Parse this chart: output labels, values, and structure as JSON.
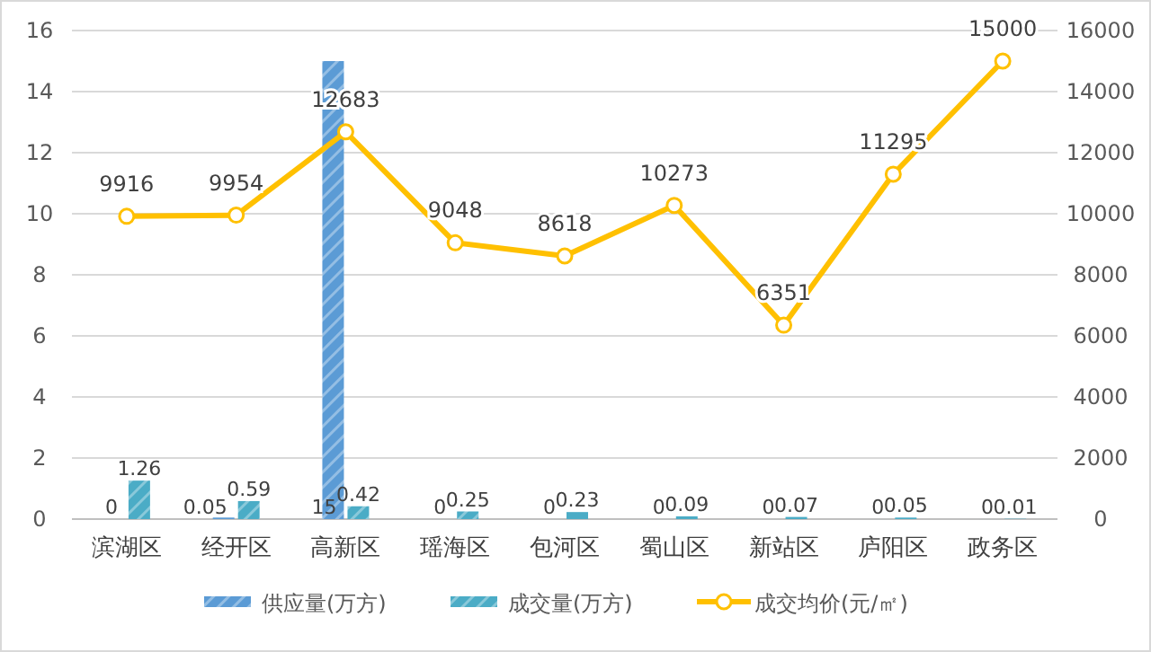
{
  "chart_data": {
    "type": "bar",
    "categories": [
      "滨湖区",
      "经开区",
      "高新区",
      "瑶海区",
      "包河区",
      "蜀山区",
      "新站区",
      "庐阳区",
      "政务区"
    ],
    "series": [
      {
        "name": "供应量(万方)",
        "color": "#5b9bd5",
        "values": [
          0,
          0.05,
          15,
          0,
          0,
          0,
          0,
          0,
          0
        ]
      },
      {
        "name": "成交量(万方)",
        "color": "#4bacc6",
        "values": [
          1.26,
          0.59,
          0.42,
          0.25,
          0.23,
          0.09,
          0.07,
          0.05,
          0.01
        ]
      },
      {
        "name": "成交均价(元/㎡)",
        "color": "#ffc000",
        "type": "line",
        "axis": "y2",
        "marker": "circle",
        "values": [
          9916,
          9954,
          12683,
          9048,
          8618,
          10273,
          6351,
          11295,
          15000
        ]
      }
    ],
    "ylim": [
      0,
      16
    ],
    "yticks": [
      0,
      2,
      4,
      6,
      8,
      10,
      12,
      14,
      16
    ],
    "y2lim": [
      0,
      16000
    ],
    "y2ticks": [
      0,
      2000,
      4000,
      6000,
      8000,
      10000,
      12000,
      14000,
      16000
    ],
    "grid": "y",
    "legend": "bottom",
    "data_labels": true
  }
}
